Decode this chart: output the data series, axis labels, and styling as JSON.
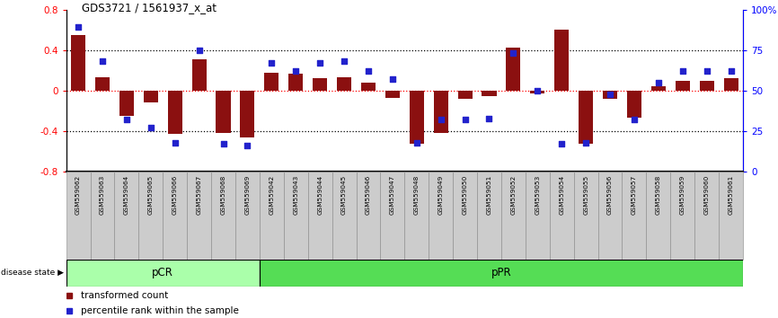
{
  "title": "GDS3721 / 1561937_x_at",
  "samples": [
    "GSM559062",
    "GSM559063",
    "GSM559064",
    "GSM559065",
    "GSM559066",
    "GSM559067",
    "GSM559068",
    "GSM559069",
    "GSM559042",
    "GSM559043",
    "GSM559044",
    "GSM559045",
    "GSM559046",
    "GSM559047",
    "GSM559048",
    "GSM559049",
    "GSM559050",
    "GSM559051",
    "GSM559052",
    "GSM559053",
    "GSM559054",
    "GSM559055",
    "GSM559056",
    "GSM559057",
    "GSM559058",
    "GSM559059",
    "GSM559060",
    "GSM559061"
  ],
  "transformed_count": [
    0.55,
    0.13,
    -0.25,
    -0.12,
    -0.43,
    0.31,
    -0.42,
    -0.46,
    0.18,
    0.17,
    0.12,
    0.13,
    0.08,
    -0.07,
    -0.52,
    -0.42,
    -0.08,
    -0.05,
    0.42,
    -0.03,
    0.6,
    -0.52,
    -0.08,
    -0.27,
    0.04,
    0.1,
    0.1,
    0.12
  ],
  "percentile_rank": [
    89,
    68,
    32,
    27,
    18,
    75,
    17,
    16,
    67,
    62,
    67,
    68,
    62,
    57,
    18,
    32,
    32,
    33,
    73,
    50,
    17,
    18,
    48,
    32,
    55,
    62,
    62,
    62
  ],
  "pCR_count": 8,
  "pPR_count": 20,
  "bar_color": "#8B1010",
  "dot_color": "#2222CC",
  "ylim": [
    -0.8,
    0.8
  ],
  "y2lim": [
    0,
    100
  ],
  "yticks_left": [
    -0.8,
    -0.4,
    0.0,
    0.4,
    0.8
  ],
  "yticks_right": [
    0,
    25,
    50,
    75,
    100
  ],
  "dotted_lines": [
    -0.4,
    0.4
  ],
  "zero_line": 0.0,
  "legend_red": "transformed count",
  "legend_blue": "percentile rank within the sample",
  "disease_state_label": "disease state",
  "pCR_label": "pCR",
  "pPR_label": "pPR",
  "background_color": "#ffffff",
  "pCR_color": "#aaffaa",
  "pPR_color": "#55dd55",
  "xticklabel_bg": "#cccccc",
  "xticklabel_border": "#888888"
}
